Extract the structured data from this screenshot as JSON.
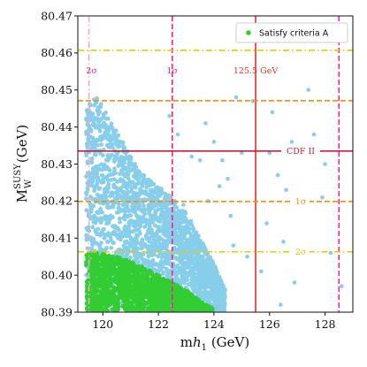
{
  "chart_data": {
    "type": "scatter",
    "xlabel": "m_h1 (GeV)",
    "ylabel": "M_W^SUSY (GeV)",
    "xlim": [
      119.1,
      129.0
    ],
    "ylim": [
      80.39,
      80.47
    ],
    "xticks": [
      "120",
      "122",
      "124",
      "126",
      "128"
    ],
    "yticks": [
      "80.39",
      "80.40",
      "80.41",
      "80.42",
      "80.43",
      "80.44",
      "80.45",
      "80.46",
      "80.47"
    ],
    "legend": {
      "label": "Satisfy criteria A",
      "position": "top-right"
    },
    "colors": {
      "all_points": "#87ceeb",
      "criteria_A": "#32cd32",
      "cdf": "#cc2233",
      "mh_line": "#ee2b2b",
      "mh_band": "#ff1f8f",
      "mw_1sigma": "#ff8c00",
      "mw_2sigma": "#e8c800"
    },
    "reference_lines": {
      "vertical": [
        {
          "x": 125.5,
          "label": "125.5 GeV",
          "style": "solid"
        },
        {
          "x": 122.5,
          "label": "1σ",
          "style": "dashed"
        },
        {
          "x": 128.5,
          "label": "",
          "style": "dashed"
        },
        {
          "x": 119.5,
          "label": "2σ",
          "style": "dashdot"
        }
      ],
      "horizontal": [
        {
          "y": 80.4335,
          "label": "CDF II",
          "style": "solid"
        },
        {
          "y": 80.4471,
          "label": "",
          "style": "dashed"
        },
        {
          "y": 80.4199,
          "label": "1σ",
          "style": "dashed"
        },
        {
          "y": 80.4607,
          "label": "",
          "style": "dashdot"
        },
        {
          "y": 80.4063,
          "label": "2σ",
          "style": "dashdot"
        }
      ]
    },
    "series": [
      {
        "name": "",
        "color": "#87ceeb",
        "region": {
          "x": [
            119.4,
            124.4
          ],
          "upper_boundary": [
            [
              119.4,
              80.446
            ],
            [
              119.8,
              80.448
            ],
            [
              120.5,
              80.439
            ],
            [
              121.0,
              80.432
            ],
            [
              121.5,
              80.427
            ],
            [
              122.0,
              80.424
            ],
            [
              122.5,
              80.421
            ],
            [
              123.0,
              80.417
            ],
            [
              123.5,
              80.41
            ],
            [
              124.0,
              80.403
            ],
            [
              124.4,
              80.396
            ]
          ],
          "ymin": 80.39
        },
        "scattered_points": [
          [
            122.9,
            80.419
          ],
          [
            123.2,
            80.432
          ],
          [
            123.5,
            80.431
          ],
          [
            124.0,
            80.436
          ],
          [
            124.5,
            80.426
          ],
          [
            124.8,
            80.448
          ],
          [
            125.0,
            80.433
          ],
          [
            125.2,
            80.405
          ],
          [
            125.4,
            80.447
          ],
          [
            126.0,
            80.433
          ],
          [
            126.1,
            80.444
          ],
          [
            126.3,
            80.427
          ],
          [
            126.5,
            80.409
          ],
          [
            126.6,
            80.423
          ],
          [
            126.8,
            80.436
          ],
          [
            127.0,
            80.419
          ],
          [
            127.4,
            80.45
          ],
          [
            127.6,
            80.438
          ],
          [
            128.2,
            80.406
          ],
          [
            128.6,
            80.397
          ],
          [
            124.6,
            80.416
          ],
          [
            124.2,
            80.424
          ],
          [
            123.8,
            80.42
          ],
          [
            123.7,
            80.441
          ],
          [
            124.7,
            80.408
          ],
          [
            125.9,
            80.414
          ],
          [
            126.9,
            80.398
          ],
          [
            128.0,
            80.43
          ],
          [
            122.7,
            80.438
          ],
          [
            122.4,
            80.443
          ],
          [
            127.9,
            80.421
          ],
          [
            125.7,
            80.401
          ],
          [
            126.4,
            80.392
          ],
          [
            124.3,
            80.431
          ]
        ]
      },
      {
        "name": "Satisfy criteria A",
        "color": "#32cd32",
        "region": {
          "x": [
            119.4,
            123.95
          ],
          "upper_boundary": [
            [
              119.4,
              80.406
            ],
            [
              119.8,
              80.406
            ],
            [
              120.5,
              80.405
            ],
            [
              121.0,
              80.404
            ],
            [
              121.5,
              80.402
            ],
            [
              122.0,
              80.4
            ],
            [
              122.5,
              80.398
            ],
            [
              123.0,
              80.396
            ],
            [
              123.5,
              80.393
            ],
            [
              123.95,
              80.391
            ]
          ],
          "ymin": 80.39
        }
      }
    ]
  }
}
